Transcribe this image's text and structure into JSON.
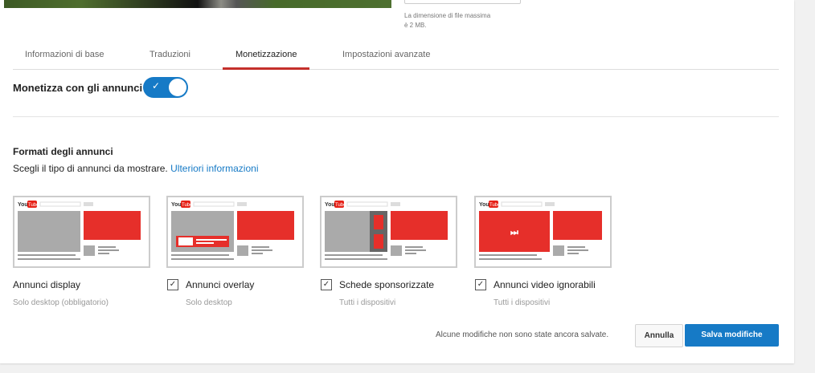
{
  "header": {
    "file_note": "La dimensione di file massima è 2 MB."
  },
  "tabs": [
    {
      "label": "Informazioni di base",
      "active": false
    },
    {
      "label": "Traduzioni",
      "active": false
    },
    {
      "label": "Monetizzazione",
      "active": true
    },
    {
      "label": "Impostazioni avanzate",
      "active": false
    }
  ],
  "monetize": {
    "label": "Monetizza con gli annunci",
    "enabled": true
  },
  "formats": {
    "title": "Formati degli annunci",
    "description": "Scegli il tipo di annunci da mostrare.",
    "link": "Ulteriori informazioni",
    "items": [
      {
        "type": "display",
        "label": "Annunci display",
        "sub": "Solo desktop (obbligatorio)",
        "has_checkbox": false
      },
      {
        "type": "overlay",
        "label": "Annunci overlay",
        "sub": "Solo desktop",
        "has_checkbox": true,
        "checked": true
      },
      {
        "type": "sponsored",
        "label": "Schede sponsorizzate",
        "sub": "Tutti i dispositivi",
        "has_checkbox": true,
        "checked": true
      },
      {
        "type": "skippable",
        "label": "Annunci video ignorabili",
        "sub": "Tutti i dispositivi",
        "has_checkbox": true,
        "checked": true
      }
    ],
    "thumb_logo": "YouTube"
  },
  "footer": {
    "unsaved": "Alcune modifiche non sono state ancora salvate.",
    "cancel": "Annulla",
    "save": "Salva modifiche"
  },
  "colors": {
    "accent": "#167ac6",
    "tab_active": "#c4302b",
    "ad_red": "#e62f2a"
  }
}
